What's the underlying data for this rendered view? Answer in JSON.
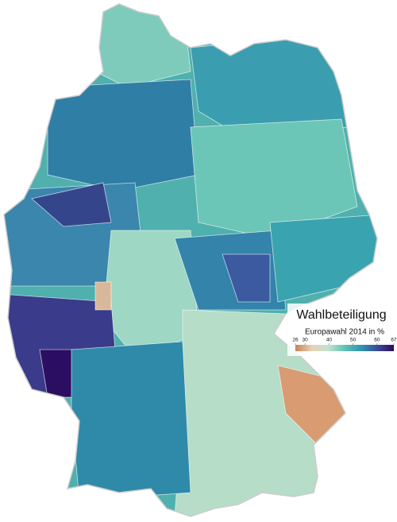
{
  "map": {
    "title": "Wahlbeteiligung",
    "subtitle": "Europawahl 2014 in %",
    "colorbar": {
      "lim": [
        26,
        67
      ],
      "ticks": [
        26,
        30,
        40,
        50,
        60,
        67
      ],
      "colors": [
        "#c98255",
        "#e6d2b5",
        "#c2e3cf",
        "#5ec3b5",
        "#2f96b0",
        "#3b4b97",
        "#2c0a5e"
      ]
    }
  }
}
